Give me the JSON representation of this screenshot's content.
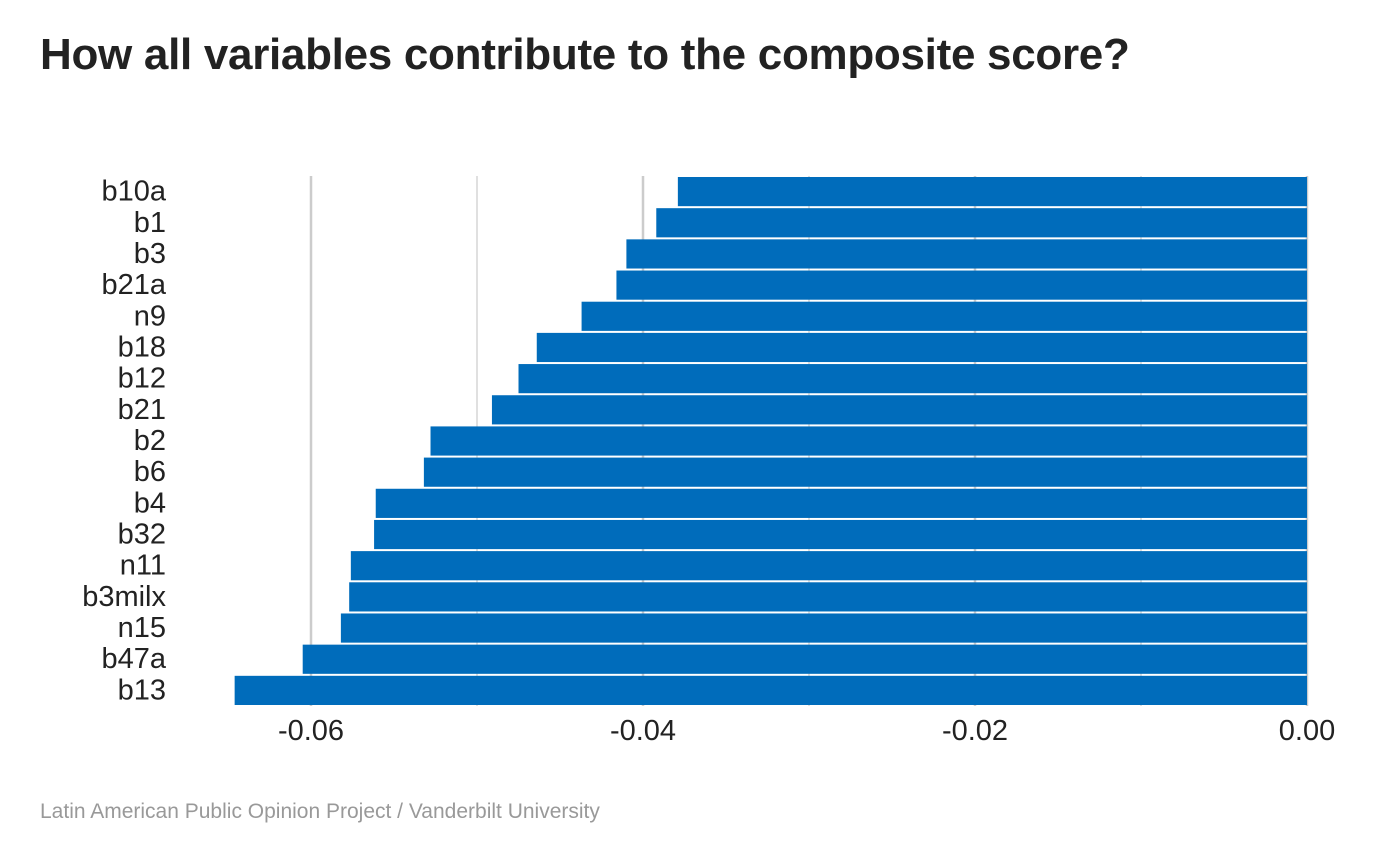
{
  "chart_data": {
    "type": "bar",
    "orientation": "horizontal",
    "title": "How all variables contribute to the composite score?",
    "xlabel": "",
    "ylabel": "",
    "xlim": [
      -0.065,
      0.0
    ],
    "xticks": [
      -0.06,
      -0.04,
      -0.02,
      0.0
    ],
    "xtick_labels": [
      "-0.06",
      "-0.04",
      "-0.02",
      "0.00"
    ],
    "grid": true,
    "categories": [
      "b10a",
      "b1",
      "b3",
      "b21a",
      "n9",
      "b18",
      "b12",
      "b21",
      "b2",
      "b6",
      "b4",
      "b32",
      "n11",
      "b3milx",
      "n15",
      "b47a",
      "b13"
    ],
    "values": [
      -0.0379,
      -0.0392,
      -0.041,
      -0.0416,
      -0.0437,
      -0.0464,
      -0.0475,
      -0.0491,
      -0.0528,
      -0.0532,
      -0.0561,
      -0.0562,
      -0.0576,
      -0.0577,
      -0.0582,
      -0.0605,
      -0.0646
    ],
    "colors": {
      "bar": "#006cbb",
      "grid": "#cccccc",
      "text": "#222222"
    }
  },
  "caption": "Latin American Public Opinion Project / Vanderbilt University"
}
